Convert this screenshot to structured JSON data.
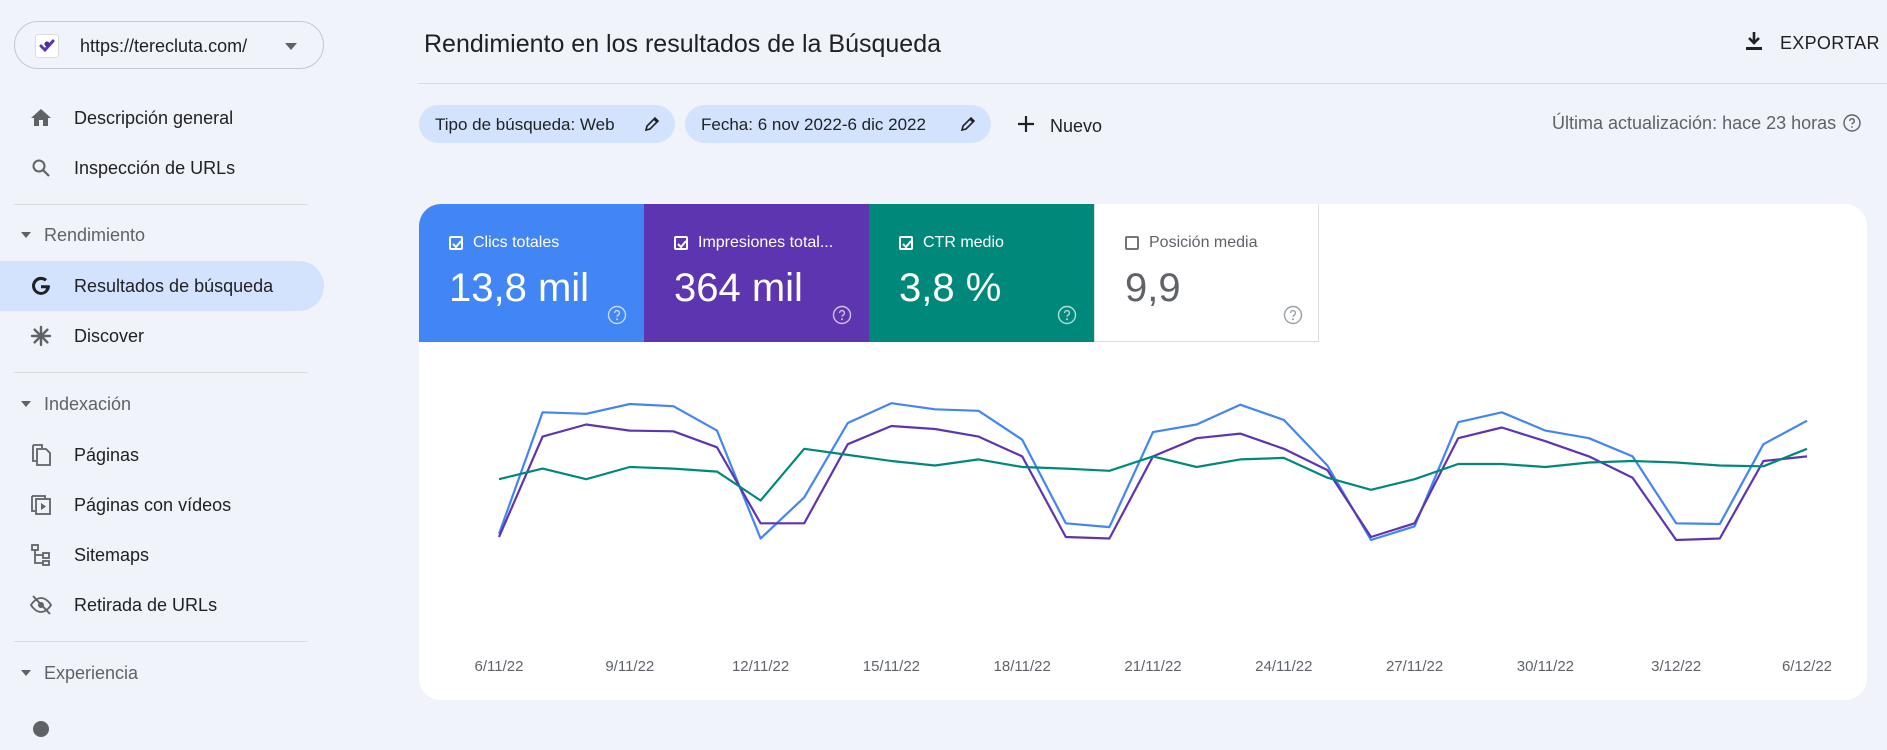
{
  "property": {
    "url": "https://terecluta.com/"
  },
  "sidebar": {
    "items": [
      {
        "label": "Descripción general",
        "icon": "home-icon"
      },
      {
        "label": "Inspección de URLs",
        "icon": "search-icon"
      }
    ],
    "sections": [
      {
        "label": "Rendimiento",
        "items": [
          {
            "label": "Resultados de búsqueda",
            "icon": "google-g-icon",
            "active": true
          },
          {
            "label": "Discover",
            "icon": "asterisk-icon"
          }
        ]
      },
      {
        "label": "Indexación",
        "items": [
          {
            "label": "Páginas",
            "icon": "pages-icon"
          },
          {
            "label": "Páginas con vídeos",
            "icon": "video-pages-icon"
          },
          {
            "label": "Sitemaps",
            "icon": "sitemap-icon"
          },
          {
            "label": "Retirada de URLs",
            "icon": "eye-off-icon"
          }
        ]
      },
      {
        "label": "Experiencia",
        "items": []
      }
    ]
  },
  "header": {
    "title": "Rendimiento en los resultados de la Búsqueda",
    "export_label": "EXPORTAR"
  },
  "filters": {
    "chips": [
      {
        "label": "Tipo de búsqueda: Web"
      },
      {
        "label": "Fecha: 6 nov 2022-6 dic 2022"
      }
    ],
    "new_label": "Nuevo",
    "last_updated": "Última actualización: hace 23 horas"
  },
  "metrics": [
    {
      "name": "Clics totales",
      "value": "13,8 mil",
      "checked": true,
      "color": "#4285f4"
    },
    {
      "name": "Impresiones total...",
      "value": "364 mil",
      "checked": true,
      "color": "#5e35b1"
    },
    {
      "name": "CTR medio",
      "value": "3,8 %",
      "checked": true,
      "color": "#00897b"
    },
    {
      "name": "Posición media",
      "value": "9,9",
      "checked": false,
      "color": "#ffffff"
    }
  ],
  "chart_data": {
    "type": "line",
    "x_tick_labels": [
      "6/11/22",
      "9/11/22",
      "12/11/22",
      "15/11/22",
      "18/11/22",
      "21/11/22",
      "24/11/22",
      "27/11/22",
      "30/11/22",
      "3/12/22",
      "6/12/22"
    ],
    "x": [
      "6/11/22",
      "7/11/22",
      "8/11/22",
      "9/11/22",
      "10/11/22",
      "11/11/22",
      "12/11/22",
      "13/11/22",
      "14/11/22",
      "15/11/22",
      "16/11/22",
      "17/11/22",
      "18/11/22",
      "19/11/22",
      "20/11/22",
      "21/11/22",
      "22/11/22",
      "23/11/22",
      "24/11/22",
      "25/11/22",
      "26/11/22",
      "27/11/22",
      "28/11/22",
      "29/11/22",
      "30/11/22",
      "1/12/22",
      "2/12/22",
      "3/12/22",
      "4/12/22",
      "5/12/22",
      "6/12/22"
    ],
    "y_axis_visible": false,
    "grid": false,
    "series": [
      {
        "name": "Clics totales",
        "color": "#4285f4",
        "scale": [
          0,
          1000
        ],
        "values": [
          40,
          840,
          830,
          895,
          880,
          720,
          10,
          280,
          770,
          900,
          860,
          850,
          660,
          110,
          85,
          710,
          760,
          890,
          790,
          490,
          0,
          90,
          775,
          840,
          720,
          670,
          550,
          110,
          105,
          630,
          785
        ]
      },
      {
        "name": "Impresiones totales",
        "color": "#5e35b1",
        "scale": [
          0,
          1000
        ],
        "values": [
          20,
          680,
          760,
          720,
          715,
          610,
          110,
          110,
          630,
          750,
          730,
          680,
          550,
          20,
          10,
          550,
          670,
          700,
          600,
          460,
          20,
          110,
          670,
          740,
          650,
          550,
          410,
          0,
          10,
          520,
          550
        ]
      },
      {
        "name": "CTR medio",
        "color": "#00897b",
        "scale": [
          0,
          1000
        ],
        "values": [
          400,
          470,
          400,
          480,
          470,
          450,
          260,
          600,
          560,
          520,
          490,
          530,
          480,
          470,
          455,
          550,
          480,
          530,
          540,
          410,
          330,
          400,
          500,
          500,
          480,
          510,
          520,
          510,
          490,
          485,
          600
        ]
      }
    ]
  }
}
